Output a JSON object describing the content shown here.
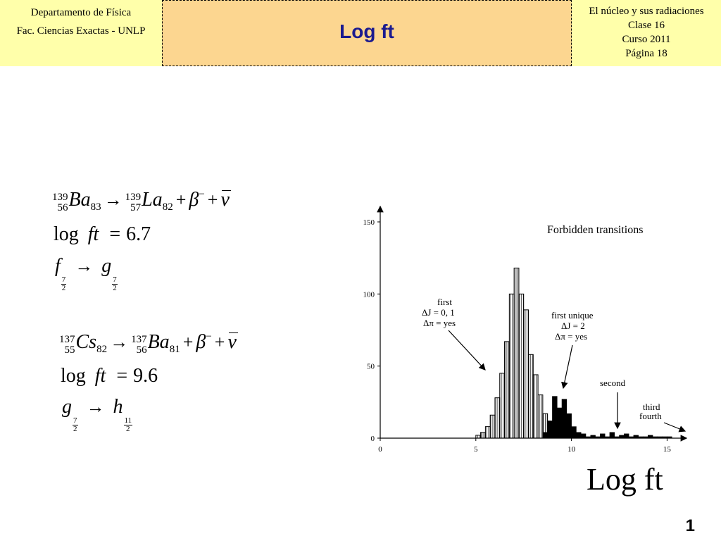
{
  "header": {
    "left_line1": "Departamento de Física",
    "left_line2": "Fac. Ciencias Exactas - UNLP",
    "title": "Log ft",
    "right_line1": "El núcleo y sus radiaciones",
    "right_line2": "Clase 16",
    "right_line3": "Curso 2011",
    "right_line4": "Página 18"
  },
  "formulas": {
    "ba_decay": {
      "A1": "139",
      "Z1": "56",
      "el1": "Ba",
      "N1": "83",
      "arrow": "→",
      "A2": "139",
      "Z2": "57",
      "el2": "La",
      "N2": "82",
      "plus": "+",
      "beta": "β",
      "minus": "−",
      "nu": "ν"
    },
    "ba_logft": {
      "log": "log",
      "ft": "ft",
      "eq": "=",
      "value": "6.7"
    },
    "ba_trans": {
      "f": "f",
      "g": "g",
      "num": "7",
      "den": "2",
      "arrow": "→"
    },
    "cs_decay": {
      "A1": "137",
      "Z1": "55",
      "el1": "Cs",
      "N1": "82",
      "arrow": "→",
      "A2": "137",
      "Z2": "56",
      "el2": "Ba",
      "N2": "81",
      "plus": "+",
      "beta": "β",
      "minus": "−",
      "nu": "ν"
    },
    "cs_logft": {
      "log": "log",
      "ft": "ft",
      "eq": "=",
      "value": "9.6"
    },
    "cs_trans": {
      "g": "g",
      "h": "h",
      "num_g": "7",
      "den_g": "2",
      "num_h": "11",
      "den_h": "2",
      "arrow": "→"
    }
  },
  "chart_data": {
    "type": "bar",
    "title": "Forbidden transitions",
    "xlabel": "Log ft",
    "xlim": [
      0,
      15.5
    ],
    "ylim": [
      0,
      150
    ],
    "xticks": [
      0,
      5,
      10,
      15
    ],
    "yticks": [
      0,
      50,
      100,
      150
    ],
    "bin_width": 0.25,
    "series": [
      {
        "color": "#ffffff",
        "bins": [
          [
            5.0,
            2
          ],
          [
            5.25,
            4
          ],
          [
            5.5,
            8
          ],
          [
            5.75,
            16
          ],
          [
            6.0,
            28
          ],
          [
            6.25,
            45
          ],
          [
            6.5,
            67
          ],
          [
            6.75,
            100
          ],
          [
            7.0,
            118
          ],
          [
            7.25,
            100
          ],
          [
            7.5,
            89
          ],
          [
            7.75,
            58
          ],
          [
            8.0,
            44
          ],
          [
            8.25,
            30
          ],
          [
            8.5,
            17
          ],
          [
            8.75,
            8
          ],
          [
            9.0,
            4
          ],
          [
            9.25,
            2
          ]
        ]
      },
      {
        "color": "#000000",
        "bins": [
          [
            8.5,
            4
          ],
          [
            8.75,
            12
          ],
          [
            9.0,
            29
          ],
          [
            9.25,
            21
          ],
          [
            9.5,
            27
          ],
          [
            9.75,
            17
          ],
          [
            10.0,
            8
          ],
          [
            10.25,
            4
          ],
          [
            10.5,
            3
          ],
          [
            10.75,
            1
          ],
          [
            11.0,
            2
          ],
          [
            11.25,
            1
          ],
          [
            11.5,
            3
          ],
          [
            11.75,
            1
          ],
          [
            12.0,
            4
          ],
          [
            12.25,
            1
          ],
          [
            12.5,
            2
          ],
          [
            12.75,
            3
          ],
          [
            13.0,
            1
          ],
          [
            13.25,
            2
          ],
          [
            13.5,
            1
          ],
          [
            13.75,
            1
          ],
          [
            14.0,
            2
          ],
          [
            14.25,
            1
          ],
          [
            14.5,
            1
          ],
          [
            14.75,
            1
          ],
          [
            15.0,
            1
          ]
        ]
      }
    ],
    "annotations": {
      "first_l1": "first",
      "first_l2": "ΔJ = 0, 1",
      "first_l3": "Δπ = yes",
      "unique_l1": "first unique",
      "unique_l2": "ΔJ = 2",
      "unique_l3": "Δπ = yes",
      "second": "second",
      "third": "third",
      "fourth": "fourth"
    }
  },
  "page_number": "1"
}
